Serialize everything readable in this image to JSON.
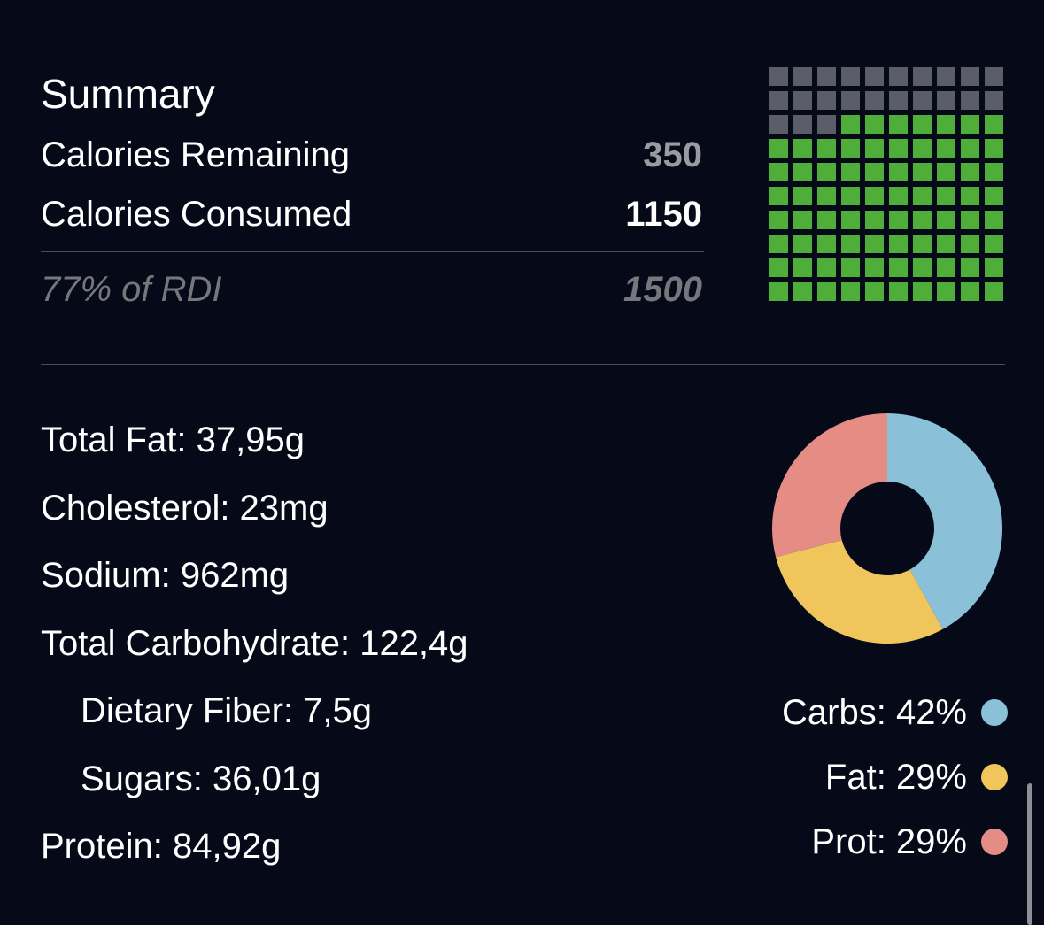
{
  "summary": {
    "title": "Summary",
    "remaining_label": "Calories Remaining",
    "remaining_value": "350",
    "consumed_label": "Calories Consumed",
    "consumed_value": "1150",
    "rdi_label": "77% of RDI",
    "rdi_value": "1500"
  },
  "waffle": {
    "total_cells": 100,
    "filled_cells": 77,
    "filled_color": "#4fae3a",
    "empty_color": "#5b5e69"
  },
  "nutrients": [
    {
      "text": "Total Fat: 37,95g"
    },
    {
      "text": "Cholesterol: 23mg"
    },
    {
      "text": "Sodium: 962mg"
    },
    {
      "text": "Total Carbohydrate: 122,4g"
    },
    {
      "text": "Dietary Fiber: 7,5g"
    },
    {
      "text": "Sugars: 36,01g"
    },
    {
      "text": "Protein: 84,92g"
    }
  ],
  "chart_data": {
    "type": "pie",
    "donut": true,
    "categories": [
      "Carbs",
      "Fat",
      "Prot"
    ],
    "values": [
      42,
      29,
      29
    ],
    "colors": [
      "#8bc1d8",
      "#efc55c",
      "#e58c84"
    ],
    "legend_placement": "bottom-right"
  },
  "legend": [
    {
      "label": "Carbs: 42%",
      "color": "#8bc1d8"
    },
    {
      "label": "Fat: 29%",
      "color": "#efc55c"
    },
    {
      "label": "Prot: 29%",
      "color": "#e58c84"
    }
  ]
}
